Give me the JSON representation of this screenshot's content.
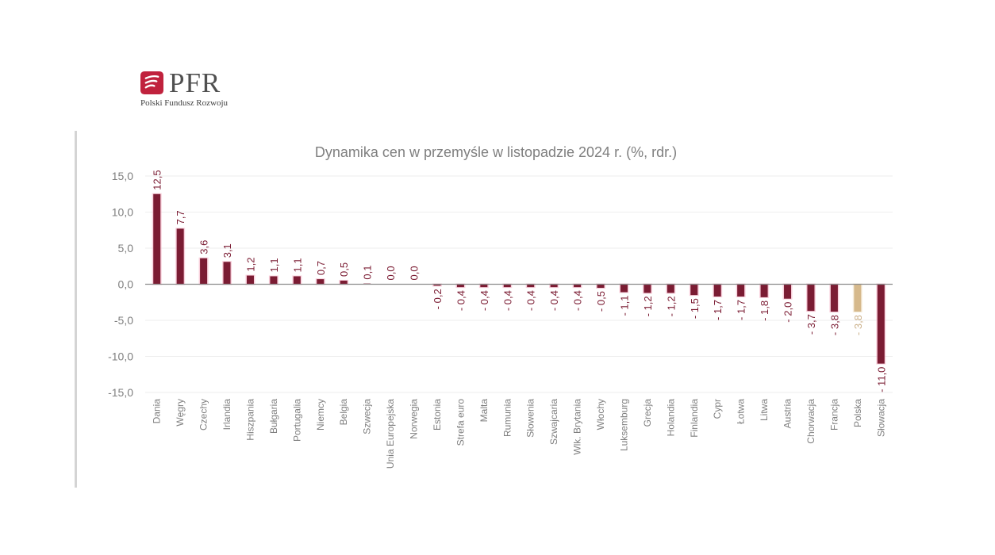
{
  "logo": {
    "name": "PFR",
    "subtitle": "Polski Fundusz Rozwoju",
    "accent": "#c0223d"
  },
  "colors": {
    "bar": "#7b1c33",
    "highlight": "#d6b98c",
    "bar_glow": "#f4a9c0",
    "label": "#7b1c33",
    "highlight_label": "#cbb08a",
    "axis_text": "#7f7f7f",
    "grid": "#eeeeee",
    "zero_line": "#8c8c8c"
  },
  "chart_data": {
    "type": "bar",
    "title": "Dynamika cen w przemyśle w listopadzie 2024 r. (%, rdr.)",
    "xlabel": "",
    "ylabel": "",
    "ylim": [
      -15,
      15
    ],
    "yticks": [
      15,
      10,
      5,
      0,
      -5,
      -10,
      -15
    ],
    "ytick_labels": [
      "15,0",
      "10,0",
      "5,0",
      "0,0",
      "-5,0",
      "-10,0",
      "-15,0"
    ],
    "grid": true,
    "highlight": "Polska",
    "categories": [
      "Dania",
      "Węgry",
      "Czechy",
      "Irlandia",
      "Hiszpania",
      "Bułgaria",
      "Portugalia",
      "Niemcy",
      "Belgia",
      "Szwecja",
      "Unia Europejska",
      "Norwegia",
      "Estonia",
      "Strefa euro",
      "Malta",
      "Rumunia",
      "Słowenia",
      "Szwajcaria",
      "Wlk. Brytania",
      "Włochy",
      "Luksemburg",
      "Grecja",
      "Holandia",
      "Finlandia",
      "Cypr",
      "Łotwa",
      "Litwa",
      "Austria",
      "Chorwacja",
      "Francja",
      "Polska",
      "Słowacja"
    ],
    "values": [
      12.5,
      7.7,
      3.6,
      3.1,
      1.2,
      1.1,
      1.1,
      0.7,
      0.5,
      0.1,
      0.0,
      0.0,
      -0.2,
      -0.4,
      -0.4,
      -0.4,
      -0.4,
      -0.4,
      -0.4,
      -0.5,
      -1.1,
      -1.2,
      -1.2,
      -1.5,
      -1.7,
      -1.7,
      -1.8,
      -2.0,
      -3.7,
      -3.8,
      -3.8,
      -11.0
    ],
    "data_labels": [
      "12,5",
      "7,7",
      "3,6",
      "3,1",
      "1,2",
      "1,1",
      "1,1",
      "0,7",
      "0,5",
      "0,1",
      "0,0",
      "0,0",
      "- 0,2",
      "- 0,4",
      "- 0,4",
      "- 0,4",
      "- 0,4",
      "- 0,4",
      "- 0,4",
      "- 0,5",
      "- 1,1",
      "- 1,2",
      "- 1,2",
      "- 1,5",
      "- 1,7",
      "- 1,7",
      "- 1,8",
      "- 2,0",
      "- 3,7",
      "- 3,8",
      "- 3,8",
      "- 11,0"
    ]
  }
}
